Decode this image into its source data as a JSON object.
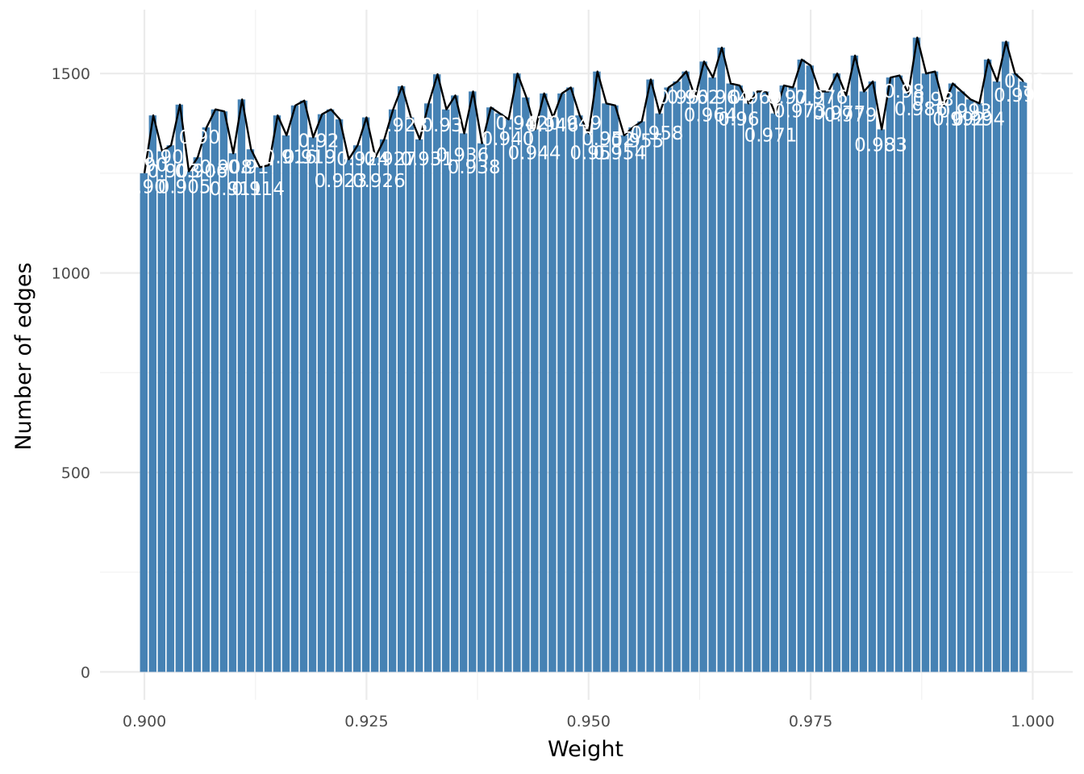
{
  "chart_data": {
    "type": "bar",
    "xlabel": "Weight",
    "ylabel": "Number of edges",
    "xlim": [
      0.895,
      1.0045
    ],
    "ylim": [
      -70,
      1660
    ],
    "x_ticks": [
      0.9,
      0.925,
      0.95,
      0.975,
      1.0
    ],
    "x_tick_labels": [
      "0.900",
      "0.925",
      "0.950",
      "0.975",
      "1.000"
    ],
    "y_ticks": [
      0,
      500,
      1000,
      1500
    ],
    "y_tick_labels": [
      "0",
      "500",
      "1000",
      "1500"
    ],
    "grid": true,
    "bar_color": "#4682b4",
    "line_color": "#000000",
    "bin_width": 0.001,
    "x": [
      0.9,
      0.901,
      0.902,
      0.903,
      0.904,
      0.905,
      0.906,
      0.907,
      0.908,
      0.909,
      0.91,
      0.911,
      0.912,
      0.913,
      0.914,
      0.915,
      0.916,
      0.917,
      0.918,
      0.919,
      0.92,
      0.921,
      0.922,
      0.923,
      0.924,
      0.925,
      0.926,
      0.927,
      0.928,
      0.929,
      0.93,
      0.931,
      0.932,
      0.933,
      0.934,
      0.935,
      0.936,
      0.937,
      0.938,
      0.939,
      0.94,
      0.941,
      0.942,
      0.943,
      0.944,
      0.945,
      0.946,
      0.947,
      0.948,
      0.949,
      0.95,
      0.951,
      0.952,
      0.953,
      0.954,
      0.955,
      0.956,
      0.957,
      0.958,
      0.959,
      0.96,
      0.961,
      0.962,
      0.963,
      0.964,
      0.965,
      0.966,
      0.967,
      0.968,
      0.969,
      0.97,
      0.971,
      0.972,
      0.973,
      0.974,
      0.975,
      0.976,
      0.977,
      0.978,
      0.979,
      0.98,
      0.981,
      0.982,
      0.983,
      0.984,
      0.985,
      0.986,
      0.987,
      0.988,
      0.989,
      0.99,
      0.991,
      0.992,
      0.993,
      0.994,
      0.995,
      0.996,
      0.997,
      0.998,
      0.999
    ],
    "values": [
      1250,
      1395,
      1305,
      1320,
      1422,
      1255,
      1290,
      1365,
      1410,
      1405,
      1300,
      1435,
      1310,
      1265,
      1270,
      1395,
      1345,
      1420,
      1432,
      1340,
      1398,
      1410,
      1385,
      1285,
      1320,
      1390,
      1290,
      1335,
      1410,
      1468,
      1390,
      1335,
      1425,
      1498,
      1410,
      1445,
      1350,
      1455,
      1325,
      1415,
      1400,
      1385,
      1500,
      1440,
      1360,
      1450,
      1390,
      1450,
      1465,
      1395,
      1350,
      1505,
      1425,
      1420,
      1345,
      1365,
      1380,
      1485,
      1400,
      1465,
      1480,
      1505,
      1440,
      1530,
      1490,
      1565,
      1475,
      1470,
      1425,
      1455,
      1455,
      1400,
      1470,
      1465,
      1535,
      1520,
      1455,
      1455,
      1500,
      1445,
      1545,
      1455,
      1480,
      1360,
      1490,
      1495,
      1450,
      1590,
      1500,
      1505,
      1420,
      1475,
      1455,
      1435,
      1425,
      1535,
      1480,
      1580,
      1500,
      1480
    ],
    "annotations": [
      {
        "text": "0.90",
        "x": 0.9001,
        "y": 1200
      },
      {
        "text": "0.90",
        "x": 0.9003,
        "y": 1255
      },
      {
        "text": "0.90",
        "x": 0.9021,
        "y": 1275
      },
      {
        "text": "0.903",
        "x": 0.9033,
        "y": 1240
      },
      {
        "text": "0.905",
        "x": 0.9045,
        "y": 1200
      },
      {
        "text": "0.90",
        "x": 0.9062,
        "y": 1325
      },
      {
        "text": "0.906",
        "x": 0.9064,
        "y": 1240
      },
      {
        "text": "0.908",
        "x": 0.9092,
        "y": 1250
      },
      {
        "text": "0.911",
        "x": 0.9103,
        "y": 1195
      },
      {
        "text": "0.91",
        "x": 0.9117,
        "y": 1250
      },
      {
        "text": "0.914",
        "x": 0.9128,
        "y": 1195
      },
      {
        "text": "0.916",
        "x": 0.9164,
        "y": 1275
      },
      {
        "text": "0.919",
        "x": 0.9186,
        "y": 1275
      },
      {
        "text": "0.92",
        "x": 0.9196,
        "y": 1315
      },
      {
        "text": "0.923",
        "x": 0.9221,
        "y": 1215
      },
      {
        "text": "0.924",
        "x": 0.9246,
        "y": 1270
      },
      {
        "text": "0.926",
        "x": 0.9264,
        "y": 1215
      },
      {
        "text": "0.927",
        "x": 0.9277,
        "y": 1270
      },
      {
        "text": "0.928",
        "x": 0.9289,
        "y": 1355
      },
      {
        "text": "0.931",
        "x": 0.9318,
        "y": 1270
      },
      {
        "text": "0.93",
        "x": 0.9335,
        "y": 1355
      },
      {
        "text": "0.936",
        "x": 0.9358,
        "y": 1280
      },
      {
        "text": "0.938",
        "x": 0.9371,
        "y": 1250
      },
      {
        "text": "0.940",
        "x": 0.9409,
        "y": 1320
      },
      {
        "text": "0.942",
        "x": 0.9425,
        "y": 1360
      },
      {
        "text": "0.944",
        "x": 0.9439,
        "y": 1285
      },
      {
        "text": "0.946",
        "x": 0.9459,
        "y": 1355
      },
      {
        "text": "0.949",
        "x": 0.9485,
        "y": 1360
      },
      {
        "text": "0.95",
        "x": 0.9502,
        "y": 1285
      },
      {
        "text": "0.952",
        "x": 0.9522,
        "y": 1320
      },
      {
        "text": "0.954",
        "x": 0.9535,
        "y": 1285
      },
      {
        "text": "0.955",
        "x": 0.9555,
        "y": 1315
      },
      {
        "text": "0.958",
        "x": 0.9577,
        "y": 1335
      },
      {
        "text": "0.96",
        "x": 0.9601,
        "y": 1425
      },
      {
        "text": "0.962",
        "x": 0.9618,
        "y": 1425
      },
      {
        "text": "0.964",
        "x": 0.9637,
        "y": 1380
      },
      {
        "text": "0.964",
        "x": 0.9652,
        "y": 1425
      },
      {
        "text": "0.96",
        "x": 0.9669,
        "y": 1370
      },
      {
        "text": "0.969",
        "x": 0.9688,
        "y": 1425
      },
      {
        "text": "0.971",
        "x": 0.9705,
        "y": 1330
      },
      {
        "text": "0.97",
        "x": 0.9724,
        "y": 1425
      },
      {
        "text": "0.973",
        "x": 0.9738,
        "y": 1390
      },
      {
        "text": "0.976",
        "x": 0.9762,
        "y": 1425
      },
      {
        "text": "0.977",
        "x": 0.9782,
        "y": 1385
      },
      {
        "text": "0.979",
        "x": 0.9795,
        "y": 1380
      },
      {
        "text": "0.983",
        "x": 0.9829,
        "y": 1305
      },
      {
        "text": "0.98",
        "x": 0.9855,
        "y": 1440
      },
      {
        "text": "0.986",
        "x": 0.9874,
        "y": 1395
      },
      {
        "text": "0.98",
        "x": 0.9888,
        "y": 1420
      },
      {
        "text": "0.992",
        "x": 0.9917,
        "y": 1370
      },
      {
        "text": "0.993",
        "x": 0.9924,
        "y": 1390
      },
      {
        "text": "0.994",
        "x": 0.9939,
        "y": 1370
      },
      {
        "text": "0.998",
        "x": 0.9986,
        "y": 1430
      },
      {
        "text": "0.99",
        "x": 0.9991,
        "y": 1465
      }
    ]
  }
}
